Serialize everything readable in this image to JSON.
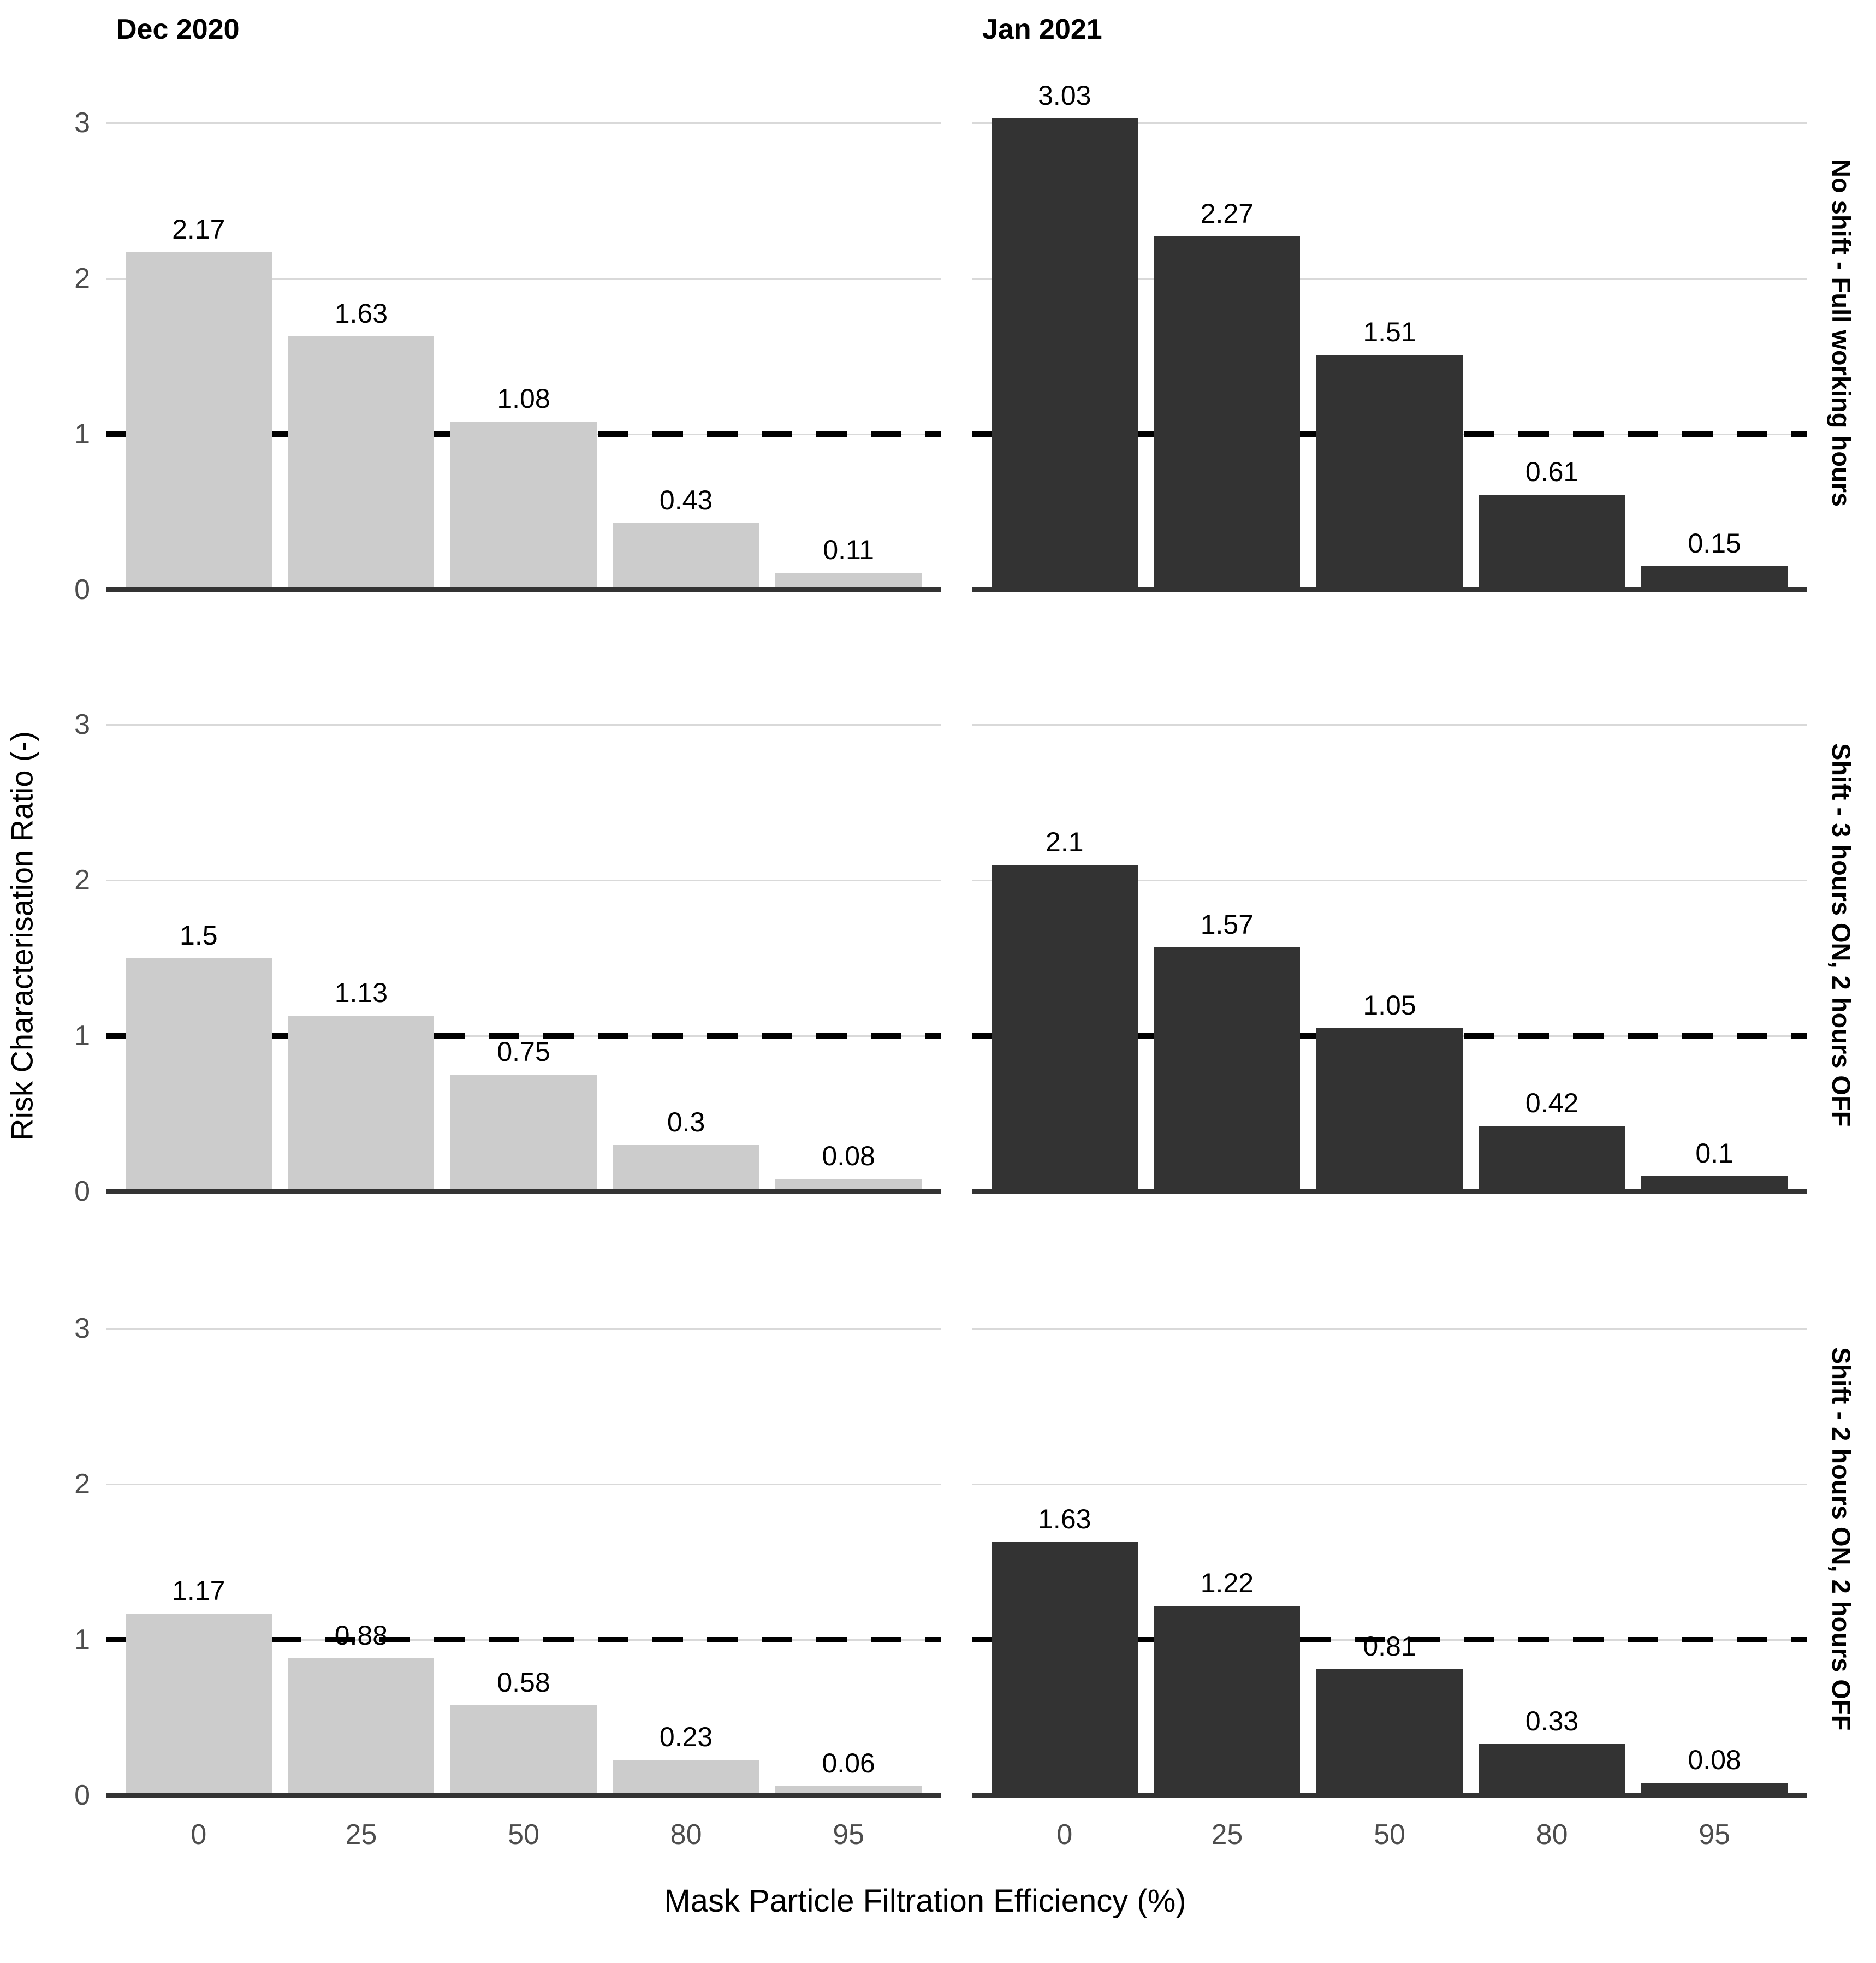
{
  "colors": {
    "bar_light": "#cccccc",
    "bar_dark": "#333333",
    "gridline": "#d9d9d9",
    "axis_line": "#333333",
    "tick_label": "#4d4d4d",
    "dashed_reference_line": "#000000",
    "text": "#000000"
  },
  "chart_data": {
    "type": "bar",
    "title": "",
    "xlabel": "Mask Particle Filtration Efficiency (%)",
    "ylabel": "Risk Characterisation Ratio (-)",
    "categories": [
      "0",
      "25",
      "50",
      "80",
      "95"
    ],
    "yticks": [
      0,
      1,
      2,
      3
    ],
    "ylim": [
      0,
      3.3
    ],
    "ymax": 3.3,
    "grid": "horizontal major gridlines only, white background",
    "legend_position": "none",
    "reference_line_y": 1,
    "reference_line_style": "black thick dashed horizontal line at y = 1 in every panel",
    "facet_columns": [
      "Dec 2020",
      "Jan 2021"
    ],
    "facet_rows": [
      "No shift - Full working hours",
      "Shift - 3 hours ON, 2 hours OFF",
      "Shift - 2 hours ON, 2 hours OFF"
    ],
    "rows": [
      {
        "row_label": "No shift - Full working hours",
        "dec": [
          "2.17",
          "1.63",
          "1.08",
          "0.43",
          "0.11"
        ],
        "jan": [
          "3.03",
          "2.27",
          "1.51",
          "0.61",
          "0.15"
        ]
      },
      {
        "row_label": "Shift - 3 hours ON, 2 hours OFF",
        "dec": [
          "1.5",
          "1.13",
          "0.75",
          "0.3",
          "0.08"
        ],
        "jan": [
          "2.1",
          "1.57",
          "1.05",
          "0.42",
          "0.1"
        ]
      },
      {
        "row_label": "Shift - 2 hours ON, 2 hours OFF",
        "dec": [
          "1.17",
          "0.88",
          "0.58",
          "0.23",
          "0.06"
        ],
        "jan": [
          "1.63",
          "1.22",
          "0.81",
          "0.33",
          "0.08"
        ]
      }
    ],
    "series": [
      {
        "name": "Dec 2020 / No shift - Full working hours",
        "color": "#cccccc",
        "values": [
          2.17,
          1.63,
          1.08,
          0.43,
          0.11
        ]
      },
      {
        "name": "Jan 2021 / No shift - Full working hours",
        "color": "#333333",
        "values": [
          3.03,
          2.27,
          1.51,
          0.61,
          0.15
        ]
      },
      {
        "name": "Dec 2020 / Shift - 3 hours ON, 2 hours OFF",
        "color": "#cccccc",
        "values": [
          1.5,
          1.13,
          0.75,
          0.3,
          0.08
        ]
      },
      {
        "name": "Jan 2021 / Shift - 3 hours ON, 2 hours OFF",
        "color": "#333333",
        "values": [
          2.1,
          1.57,
          1.05,
          0.42,
          0.1
        ]
      },
      {
        "name": "Dec 2020 / Shift - 2 hours ON, 2 hours OFF",
        "color": "#cccccc",
        "values": [
          1.17,
          0.88,
          0.58,
          0.23,
          0.06
        ]
      },
      {
        "name": "Jan 2021 / Shift - 2 hours ON, 2 hours OFF",
        "color": "#333333",
        "values": [
          1.63,
          1.22,
          0.81,
          0.33,
          0.08
        ]
      }
    ]
  },
  "headers": {
    "dec": "Dec 2020",
    "jan": "Jan 2021"
  },
  "axes": {
    "y_title": "Risk Characterisation Ratio (-)",
    "x_title": "Mask Particle Filtration Efficiency (%)"
  }
}
